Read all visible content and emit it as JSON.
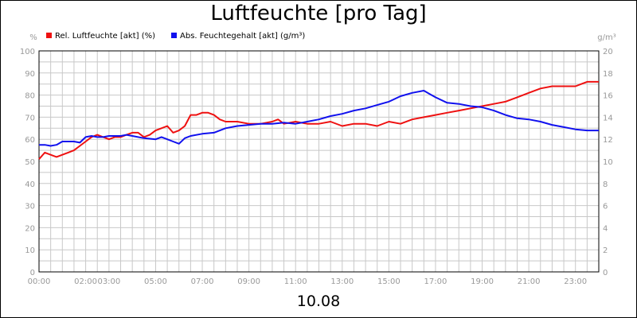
{
  "chart_data": {
    "type": "line",
    "title": "Luftfeuchte [pro Tag]",
    "xlabel": "10.08",
    "ylabel_left": "%",
    "ylabel_right": "g/m³",
    "x_range_hours": [
      0,
      24
    ],
    "x_ticks": [
      "00:00",
      "02:00",
      "03:00",
      "05:00",
      "07:00",
      "09:00",
      "11:00",
      "13:00",
      "15:00",
      "17:00",
      "19:00",
      "21:00",
      "23:00"
    ],
    "y_left_range": [
      0,
      100
    ],
    "y_left_ticks": [
      "0",
      "10",
      "20",
      "30",
      "40",
      "50",
      "60",
      "70",
      "80",
      "90",
      "100"
    ],
    "y_right_range": [
      0,
      20
    ],
    "y_right_ticks": [
      "0",
      "2",
      "4",
      "6",
      "8",
      "10",
      "12",
      "14",
      "16",
      "18",
      "20"
    ],
    "grid": true,
    "legend_position": "top-left",
    "series": [
      {
        "name": "Rel. Luftfeuchte [akt] (%)",
        "axis": "left",
        "color": "#ee1111",
        "points": [
          [
            0,
            51
          ],
          [
            0.25,
            54
          ],
          [
            0.5,
            53
          ],
          [
            0.75,
            52
          ],
          [
            1.0,
            53
          ],
          [
            1.25,
            54
          ],
          [
            1.5,
            55
          ],
          [
            1.75,
            57
          ],
          [
            2.0,
            59
          ],
          [
            2.25,
            61
          ],
          [
            2.5,
            62
          ],
          [
            2.75,
            61
          ],
          [
            3.0,
            60
          ],
          [
            3.25,
            61
          ],
          [
            3.5,
            61
          ],
          [
            3.75,
            62
          ],
          [
            4.0,
            63
          ],
          [
            4.25,
            63
          ],
          [
            4.5,
            61
          ],
          [
            4.75,
            62
          ],
          [
            5.0,
            64
          ],
          [
            5.25,
            65
          ],
          [
            5.5,
            66
          ],
          [
            5.75,
            63
          ],
          [
            6.0,
            64
          ],
          [
            6.25,
            66
          ],
          [
            6.5,
            71
          ],
          [
            6.75,
            71
          ],
          [
            7.0,
            72
          ],
          [
            7.25,
            72
          ],
          [
            7.5,
            71
          ],
          [
            7.75,
            69
          ],
          [
            8.0,
            68
          ],
          [
            8.5,
            68
          ],
          [
            9.0,
            67
          ],
          [
            9.5,
            67
          ],
          [
            10.0,
            68
          ],
          [
            10.25,
            69
          ],
          [
            10.5,
            67
          ],
          [
            11.0,
            68
          ],
          [
            11.5,
            67
          ],
          [
            12.0,
            67
          ],
          [
            12.5,
            68
          ],
          [
            13.0,
            66
          ],
          [
            13.5,
            67
          ],
          [
            14.0,
            67
          ],
          [
            14.5,
            66
          ],
          [
            15.0,
            68
          ],
          [
            15.5,
            67
          ],
          [
            16.0,
            69
          ],
          [
            16.5,
            70
          ],
          [
            17.0,
            71
          ],
          [
            17.5,
            72
          ],
          [
            18.0,
            73
          ],
          [
            18.5,
            74
          ],
          [
            19.0,
            75
          ],
          [
            19.5,
            76
          ],
          [
            20.0,
            77
          ],
          [
            20.5,
            79
          ],
          [
            21.0,
            81
          ],
          [
            21.5,
            83
          ],
          [
            22.0,
            84
          ],
          [
            22.5,
            84
          ],
          [
            23.0,
            84
          ],
          [
            23.25,
            85
          ],
          [
            23.5,
            86
          ],
          [
            24.0,
            86
          ]
        ]
      },
      {
        "name": "Abs. Feuchtegehalt [akt] (g/m³)",
        "axis": "right",
        "color": "#1111ee",
        "points": [
          [
            0,
            11.5
          ],
          [
            0.25,
            11.5
          ],
          [
            0.5,
            11.4
          ],
          [
            0.75,
            11.5
          ],
          [
            1.0,
            11.8
          ],
          [
            1.25,
            11.8
          ],
          [
            1.5,
            11.8
          ],
          [
            1.75,
            11.7
          ],
          [
            2.0,
            12.2
          ],
          [
            2.25,
            12.3
          ],
          [
            2.5,
            12.2
          ],
          [
            2.75,
            12.2
          ],
          [
            3.0,
            12.3
          ],
          [
            3.25,
            12.3
          ],
          [
            3.5,
            12.3
          ],
          [
            3.75,
            12.4
          ],
          [
            4.0,
            12.3
          ],
          [
            4.5,
            12.1
          ],
          [
            5.0,
            12.0
          ],
          [
            5.25,
            12.2
          ],
          [
            5.5,
            12.0
          ],
          [
            5.75,
            11.8
          ],
          [
            6.0,
            11.6
          ],
          [
            6.25,
            12.1
          ],
          [
            6.5,
            12.3
          ],
          [
            7.0,
            12.5
          ],
          [
            7.5,
            12.6
          ],
          [
            8.0,
            13.0
          ],
          [
            8.5,
            13.2
          ],
          [
            9.0,
            13.3
          ],
          [
            9.5,
            13.4
          ],
          [
            10.0,
            13.4
          ],
          [
            10.5,
            13.5
          ],
          [
            11.0,
            13.4
          ],
          [
            11.5,
            13.6
          ],
          [
            12.0,
            13.8
          ],
          [
            12.5,
            14.1
          ],
          [
            13.0,
            14.3
          ],
          [
            13.5,
            14.6
          ],
          [
            14.0,
            14.8
          ],
          [
            14.5,
            15.1
          ],
          [
            15.0,
            15.4
          ],
          [
            15.5,
            15.9
          ],
          [
            16.0,
            16.2
          ],
          [
            16.5,
            16.4
          ],
          [
            16.75,
            16.1
          ],
          [
            17.0,
            15.8
          ],
          [
            17.5,
            15.3
          ],
          [
            18.0,
            15.2
          ],
          [
            18.5,
            15.0
          ],
          [
            19.0,
            14.9
          ],
          [
            19.5,
            14.6
          ],
          [
            20.0,
            14.2
          ],
          [
            20.5,
            13.9
          ],
          [
            21.0,
            13.8
          ],
          [
            21.5,
            13.6
          ],
          [
            22.0,
            13.3
          ],
          [
            22.5,
            13.1
          ],
          [
            23.0,
            12.9
          ],
          [
            23.5,
            12.8
          ],
          [
            24.0,
            12.8
          ]
        ]
      }
    ]
  }
}
